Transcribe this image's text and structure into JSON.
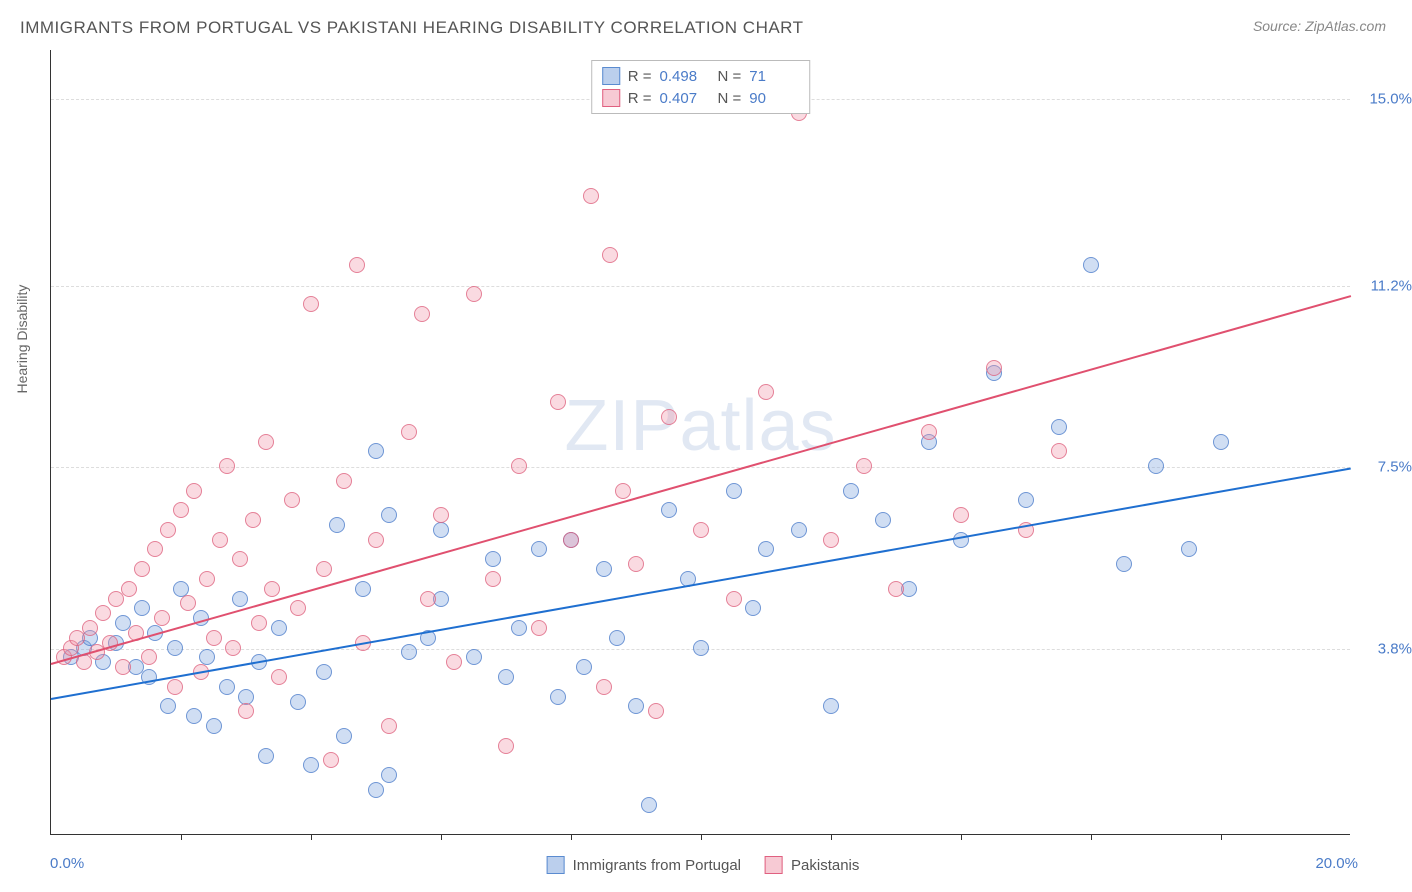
{
  "title": "IMMIGRANTS FROM PORTUGAL VS PAKISTANI HEARING DISABILITY CORRELATION CHART",
  "source_label": "Source:",
  "source_name": "ZipAtlas.com",
  "watermark": "ZIPatlas",
  "y_axis_title": "Hearing Disability",
  "chart": {
    "type": "scatter",
    "background_color": "#ffffff",
    "grid_color": "#dddddd",
    "axis_color": "#333333",
    "xlim": [
      0,
      20
    ],
    "ylim": [
      0,
      16
    ],
    "x_ticks": [
      2,
      4,
      6,
      8,
      10,
      12,
      14,
      16,
      18
    ],
    "x_min_label": "0.0%",
    "x_max_label": "20.0%",
    "y_gridlines": [
      3.8,
      7.5,
      11.2,
      15.0
    ],
    "y_tick_labels": [
      "3.8%",
      "7.5%",
      "11.2%",
      "15.0%"
    ],
    "tick_label_color": "#4a7bc8",
    "tick_label_fontsize": 15,
    "marker_radius": 8,
    "marker_opacity": 0.35,
    "series": [
      {
        "name": "Immigrants from Portugal",
        "fill_color": "#7aa0dc",
        "stroke_color": "#4678c8",
        "R": "0.498",
        "N": "71",
        "trend": {
          "y_at_x0": 2.8,
          "y_at_x20": 7.5,
          "color": "#1f6fd0",
          "width": 2
        },
        "points": [
          [
            0.3,
            3.6
          ],
          [
            0.5,
            3.8
          ],
          [
            0.6,
            4.0
          ],
          [
            0.8,
            3.5
          ],
          [
            1.0,
            3.9
          ],
          [
            1.1,
            4.3
          ],
          [
            1.3,
            3.4
          ],
          [
            1.4,
            4.6
          ],
          [
            1.5,
            3.2
          ],
          [
            1.6,
            4.1
          ],
          [
            1.8,
            2.6
          ],
          [
            1.9,
            3.8
          ],
          [
            2.0,
            5.0
          ],
          [
            2.2,
            2.4
          ],
          [
            2.3,
            4.4
          ],
          [
            2.4,
            3.6
          ],
          [
            2.5,
            2.2
          ],
          [
            2.7,
            3.0
          ],
          [
            2.9,
            4.8
          ],
          [
            3.0,
            2.8
          ],
          [
            3.2,
            3.5
          ],
          [
            3.3,
            1.6
          ],
          [
            3.5,
            4.2
          ],
          [
            3.8,
            2.7
          ],
          [
            4.0,
            1.4
          ],
          [
            4.2,
            3.3
          ],
          [
            4.4,
            6.3
          ],
          [
            4.5,
            2.0
          ],
          [
            4.8,
            5.0
          ],
          [
            5.0,
            7.8
          ],
          [
            5.0,
            0.9
          ],
          [
            5.2,
            6.5
          ],
          [
            5.2,
            1.2
          ],
          [
            5.5,
            3.7
          ],
          [
            5.8,
            4.0
          ],
          [
            6.0,
            4.8
          ],
          [
            6.0,
            6.2
          ],
          [
            6.5,
            3.6
          ],
          [
            6.8,
            5.6
          ],
          [
            7.0,
            3.2
          ],
          [
            7.2,
            4.2
          ],
          [
            7.5,
            5.8
          ],
          [
            7.8,
            2.8
          ],
          [
            8.0,
            6.0
          ],
          [
            8.2,
            3.4
          ],
          [
            8.5,
            5.4
          ],
          [
            8.7,
            4.0
          ],
          [
            9.0,
            2.6
          ],
          [
            9.2,
            0.6
          ],
          [
            9.5,
            6.6
          ],
          [
            9.8,
            5.2
          ],
          [
            10.0,
            3.8
          ],
          [
            10.5,
            7.0
          ],
          [
            10.8,
            4.6
          ],
          [
            11.0,
            5.8
          ],
          [
            11.5,
            6.2
          ],
          [
            12.0,
            2.6
          ],
          [
            12.3,
            7.0
          ],
          [
            12.8,
            6.4
          ],
          [
            13.2,
            5.0
          ],
          [
            13.5,
            8.0
          ],
          [
            14.0,
            6.0
          ],
          [
            14.5,
            9.4
          ],
          [
            15.0,
            6.8
          ],
          [
            15.5,
            8.3
          ],
          [
            16.0,
            11.6
          ],
          [
            16.5,
            5.5
          ],
          [
            17.0,
            7.5
          ],
          [
            17.5,
            5.8
          ],
          [
            18.0,
            8.0
          ]
        ]
      },
      {
        "name": "Pakistanis",
        "fill_color": "#f096aa",
        "stroke_color": "#dc5a78",
        "R": "0.407",
        "N": "90",
        "trend": {
          "y_at_x0": 3.5,
          "y_at_x20": 11.0,
          "color": "#e0506f",
          "width": 2
        },
        "points": [
          [
            0.2,
            3.6
          ],
          [
            0.3,
            3.8
          ],
          [
            0.4,
            4.0
          ],
          [
            0.5,
            3.5
          ],
          [
            0.6,
            4.2
          ],
          [
            0.7,
            3.7
          ],
          [
            0.8,
            4.5
          ],
          [
            0.9,
            3.9
          ],
          [
            1.0,
            4.8
          ],
          [
            1.1,
            3.4
          ],
          [
            1.2,
            5.0
          ],
          [
            1.3,
            4.1
          ],
          [
            1.4,
            5.4
          ],
          [
            1.5,
            3.6
          ],
          [
            1.6,
            5.8
          ],
          [
            1.7,
            4.4
          ],
          [
            1.8,
            6.2
          ],
          [
            1.9,
            3.0
          ],
          [
            2.0,
            6.6
          ],
          [
            2.1,
            4.7
          ],
          [
            2.2,
            7.0
          ],
          [
            2.3,
            3.3
          ],
          [
            2.4,
            5.2
          ],
          [
            2.5,
            4.0
          ],
          [
            2.6,
            6.0
          ],
          [
            2.7,
            7.5
          ],
          [
            2.8,
            3.8
          ],
          [
            2.9,
            5.6
          ],
          [
            3.0,
            2.5
          ],
          [
            3.1,
            6.4
          ],
          [
            3.2,
            4.3
          ],
          [
            3.3,
            8.0
          ],
          [
            3.4,
            5.0
          ],
          [
            3.5,
            3.2
          ],
          [
            3.7,
            6.8
          ],
          [
            3.8,
            4.6
          ],
          [
            4.0,
            10.8
          ],
          [
            4.2,
            5.4
          ],
          [
            4.3,
            1.5
          ],
          [
            4.5,
            7.2
          ],
          [
            4.7,
            11.6
          ],
          [
            4.8,
            3.9
          ],
          [
            5.0,
            6.0
          ],
          [
            5.2,
            2.2
          ],
          [
            5.5,
            8.2
          ],
          [
            5.7,
            10.6
          ],
          [
            5.8,
            4.8
          ],
          [
            6.0,
            6.5
          ],
          [
            6.2,
            3.5
          ],
          [
            6.5,
            11.0
          ],
          [
            6.8,
            5.2
          ],
          [
            7.0,
            1.8
          ],
          [
            7.2,
            7.5
          ],
          [
            7.5,
            4.2
          ],
          [
            7.8,
            8.8
          ],
          [
            8.0,
            6.0
          ],
          [
            8.3,
            13.0
          ],
          [
            8.5,
            3.0
          ],
          [
            8.6,
            11.8
          ],
          [
            8.8,
            7.0
          ],
          [
            9.0,
            5.5
          ],
          [
            9.3,
            2.5
          ],
          [
            9.5,
            8.5
          ],
          [
            10.0,
            6.2
          ],
          [
            10.5,
            4.8
          ],
          [
            11.0,
            9.0
          ],
          [
            11.5,
            14.7
          ],
          [
            12.0,
            6.0
          ],
          [
            12.5,
            7.5
          ],
          [
            13.0,
            5.0
          ],
          [
            13.5,
            8.2
          ],
          [
            14.0,
            6.5
          ],
          [
            14.5,
            9.5
          ],
          [
            15.0,
            6.2
          ],
          [
            15.5,
            7.8
          ]
        ]
      }
    ],
    "top_legend": {
      "R_label": "R =",
      "N_label": "N ="
    },
    "bottom_legend": {
      "items": [
        "Immigrants from Portugal",
        "Pakistanis"
      ]
    }
  }
}
